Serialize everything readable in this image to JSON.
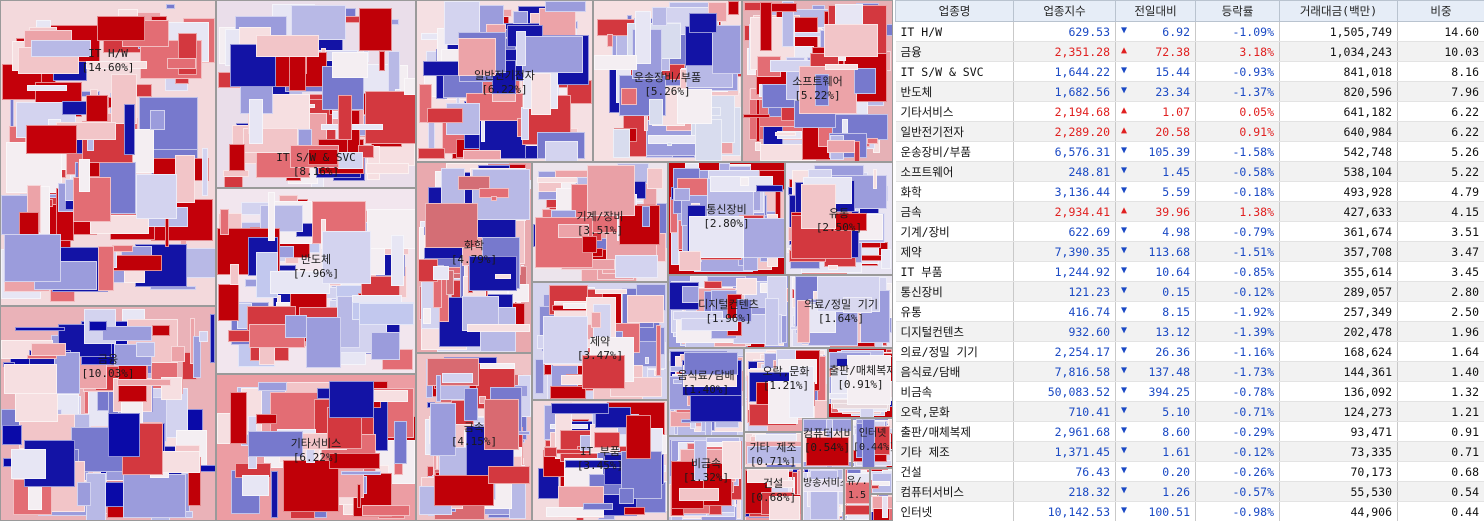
{
  "table": {
    "headers": [
      "업종명",
      "업종지수",
      "전일대비",
      "등락률",
      "거래대금(백만)",
      "비중"
    ],
    "rows": [
      {
        "name": "IT H/W",
        "index": "629.53",
        "dir": "down",
        "change": "6.92",
        "rate": "-1.09%",
        "volume": "1,505,749",
        "weight": "14.60"
      },
      {
        "name": "금융",
        "index": "2,351.28",
        "dir": "up",
        "change": "72.38",
        "rate": "3.18%",
        "volume": "1,034,243",
        "weight": "10.03"
      },
      {
        "name": "IT S/W & SVC",
        "index": "1,644.22",
        "dir": "down",
        "change": "15.44",
        "rate": "-0.93%",
        "volume": "841,018",
        "weight": "8.16"
      },
      {
        "name": "반도체",
        "index": "1,682.56",
        "dir": "down",
        "change": "23.34",
        "rate": "-1.37%",
        "volume": "820,596",
        "weight": "7.96"
      },
      {
        "name": "기타서비스",
        "index": "2,194.68",
        "dir": "up",
        "change": "1.07",
        "rate": "0.05%",
        "volume": "641,182",
        "weight": "6.22"
      },
      {
        "name": "일반전기전자",
        "index": "2,289.20",
        "dir": "up",
        "change": "20.58",
        "rate": "0.91%",
        "volume": "640,984",
        "weight": "6.22"
      },
      {
        "name": "운송장비/부품",
        "index": "6,576.31",
        "dir": "down",
        "change": "105.39",
        "rate": "-1.58%",
        "volume": "542,748",
        "weight": "5.26"
      },
      {
        "name": "소프트웨어",
        "index": "248.81",
        "dir": "down",
        "change": "1.45",
        "rate": "-0.58%",
        "volume": "538,104",
        "weight": "5.22"
      },
      {
        "name": "화학",
        "index": "3,136.44",
        "dir": "down",
        "change": "5.59",
        "rate": "-0.18%",
        "volume": "493,928",
        "weight": "4.79"
      },
      {
        "name": "금속",
        "index": "2,934.41",
        "dir": "up",
        "change": "39.96",
        "rate": "1.38%",
        "volume": "427,633",
        "weight": "4.15"
      },
      {
        "name": "기계/장비",
        "index": "622.69",
        "dir": "down",
        "change": "4.98",
        "rate": "-0.79%",
        "volume": "361,674",
        "weight": "3.51"
      },
      {
        "name": "제약",
        "index": "7,390.35",
        "dir": "down",
        "change": "113.68",
        "rate": "-1.51%",
        "volume": "357,708",
        "weight": "3.47"
      },
      {
        "name": "IT 부품",
        "index": "1,244.92",
        "dir": "down",
        "change": "10.64",
        "rate": "-0.85%",
        "volume": "355,614",
        "weight": "3.45"
      },
      {
        "name": "통신장비",
        "index": "121.23",
        "dir": "down",
        "change": "0.15",
        "rate": "-0.12%",
        "volume": "289,057",
        "weight": "2.80"
      },
      {
        "name": "유통",
        "index": "416.74",
        "dir": "down",
        "change": "8.15",
        "rate": "-1.92%",
        "volume": "257,349",
        "weight": "2.50"
      },
      {
        "name": "디지털컨텐츠",
        "index": "932.60",
        "dir": "down",
        "change": "13.12",
        "rate": "-1.39%",
        "volume": "202,478",
        "weight": "1.96"
      },
      {
        "name": "의료/정밀 기기",
        "index": "2,254.17",
        "dir": "down",
        "change": "26.36",
        "rate": "-1.16%",
        "volume": "168,624",
        "weight": "1.64"
      },
      {
        "name": "음식료/담배",
        "index": "7,816.58",
        "dir": "down",
        "change": "137.48",
        "rate": "-1.73%",
        "volume": "144,361",
        "weight": "1.40"
      },
      {
        "name": "비금속",
        "index": "50,083.52",
        "dir": "down",
        "change": "394.25",
        "rate": "-0.78%",
        "volume": "136,092",
        "weight": "1.32"
      },
      {
        "name": "오락,문화",
        "index": "710.41",
        "dir": "down",
        "change": "5.10",
        "rate": "-0.71%",
        "volume": "124,273",
        "weight": "1.21"
      },
      {
        "name": "출판/매체복제",
        "index": "2,961.68",
        "dir": "down",
        "change": "8.60",
        "rate": "-0.29%",
        "volume": "93,471",
        "weight": "0.91"
      },
      {
        "name": "기타 제조",
        "index": "1,371.45",
        "dir": "down",
        "change": "1.61",
        "rate": "-0.12%",
        "volume": "73,335",
        "weight": "0.71"
      },
      {
        "name": "건설",
        "index": "76.43",
        "dir": "down",
        "change": "0.20",
        "rate": "-0.26%",
        "volume": "70,173",
        "weight": "0.68"
      },
      {
        "name": "컴퓨터서비스",
        "index": "218.32",
        "dir": "down",
        "change": "1.26",
        "rate": "-0.57%",
        "volume": "55,530",
        "weight": "0.54"
      },
      {
        "name": "인터넷",
        "index": "10,142.53",
        "dir": "down",
        "change": "100.51",
        "rate": "-0.98%",
        "volume": "44,906",
        "weight": "0.44"
      }
    ]
  },
  "treemap": {
    "sectors": [
      {
        "name": "IT H/W",
        "weight": "[14.60%]",
        "base": "#f3d9dc",
        "accent": "#c4000a"
      },
      {
        "name": "금융",
        "weight": "[10.03%]",
        "base": "#eab2b8",
        "accent": "#0a0aa8"
      },
      {
        "name": "IT S/W & SVC",
        "weight": "[8.16%]",
        "base": "#eadeea",
        "accent": "#c00008"
      },
      {
        "name": "반도체",
        "weight": "[7.96%]",
        "base": "#f2e6ee",
        "accent": "#c2c8ee"
      },
      {
        "name": "기타서비스",
        "weight": "[6.22%]",
        "base": "#ec9da3",
        "accent": "#c00008"
      },
      {
        "name": "일반전기전자",
        "weight": "[6.22%]",
        "base": "#f5e0e3",
        "accent": "#1414a6"
      },
      {
        "name": "운송장비/부품",
        "weight": "[5.26%]",
        "base": "#f6e0e2",
        "accent": "#d8dcee"
      },
      {
        "name": "소프트웨어",
        "weight": "[5.22%]",
        "base": "#e6b1b6",
        "accent": "#c00008"
      },
      {
        "name": "화학",
        "weight": "[4.79%]",
        "base": "#e9a9ae",
        "accent": "#d46e75"
      },
      {
        "name": "금속",
        "weight": "[4.15%]",
        "base": "#efc3c6",
        "accent": "#d96a71"
      },
      {
        "name": "기계/장비",
        "weight": "[3.51%]",
        "base": "#ece4ec",
        "accent": "#e9a0a6"
      },
      {
        "name": "제약",
        "weight": "[3.47%]",
        "base": "#d5d4ee",
        "accent": "#8b8dd4"
      },
      {
        "name": "IT 부품",
        "weight": "[3.45%]",
        "base": "#f3dadd",
        "accent": "#d6383f"
      },
      {
        "name": "통신장비",
        "weight": "[2.80%]",
        "base": "#c20008",
        "accent": "#a8a8e0"
      },
      {
        "name": "유통",
        "weight": "[2.50%]",
        "base": "#e8e4f2",
        "accent": "#c4020a"
      },
      {
        "name": "디지털컨텐츠",
        "weight": "[1.96%]",
        "base": "#9a9cdc",
        "accent": "#c7c8ec"
      },
      {
        "name": "의료/정밀 기기",
        "weight": "[1.64%]",
        "base": "#ebe7f3",
        "accent": "#d9d8ef"
      },
      {
        "name": "음식료/담배",
        "weight": "[1.40%]",
        "base": "#cfd0ee",
        "accent": "#b4b6e6"
      },
      {
        "name": "비금속",
        "weight": "[1.32%]",
        "base": "#cacbee",
        "accent": "#b9bae8"
      },
      {
        "name": "오락,문화",
        "weight": "[1.21%]",
        "base": "#e8e8f4",
        "accent": "#d0d0ee"
      },
      {
        "name": "출판/매체복제",
        "weight": "[0.91%]",
        "base": "#c40008",
        "accent": "#e8d8dc"
      },
      {
        "name": "기타 제조",
        "weight": "[0.71%]",
        "base": "#e4e2f2",
        "accent": "#f2dadd"
      },
      {
        "name": "건설",
        "weight": "[0.68%]",
        "base": "#e9aab0",
        "accent": "#ec9aa0"
      },
      {
        "name": "컴퓨터서비스",
        "weight": "[0.54%]",
        "base": "#f1e9ef",
        "accent": "#e0c8d0"
      },
      {
        "name": "인터넷",
        "weight": "[0.44%]",
        "base": "#f0dfe6",
        "accent": "#d7d4ec"
      },
      {
        "name": "방송서비스",
        "weight": "",
        "base": "#f7e3e6",
        "accent": "#e6e0f0"
      },
      {
        "name": "유/.",
        "weight": "1.5",
        "base": "#ede8f2",
        "accent": "#e4e0f0"
      },
      {
        "name": "",
        "weight": "",
        "base": "#ede6ee",
        "accent": "#f0e0e4"
      },
      {
        "name": "",
        "weight": "",
        "base": "#f4e8ec",
        "accent": "#e8e0ef"
      }
    ]
  }
}
